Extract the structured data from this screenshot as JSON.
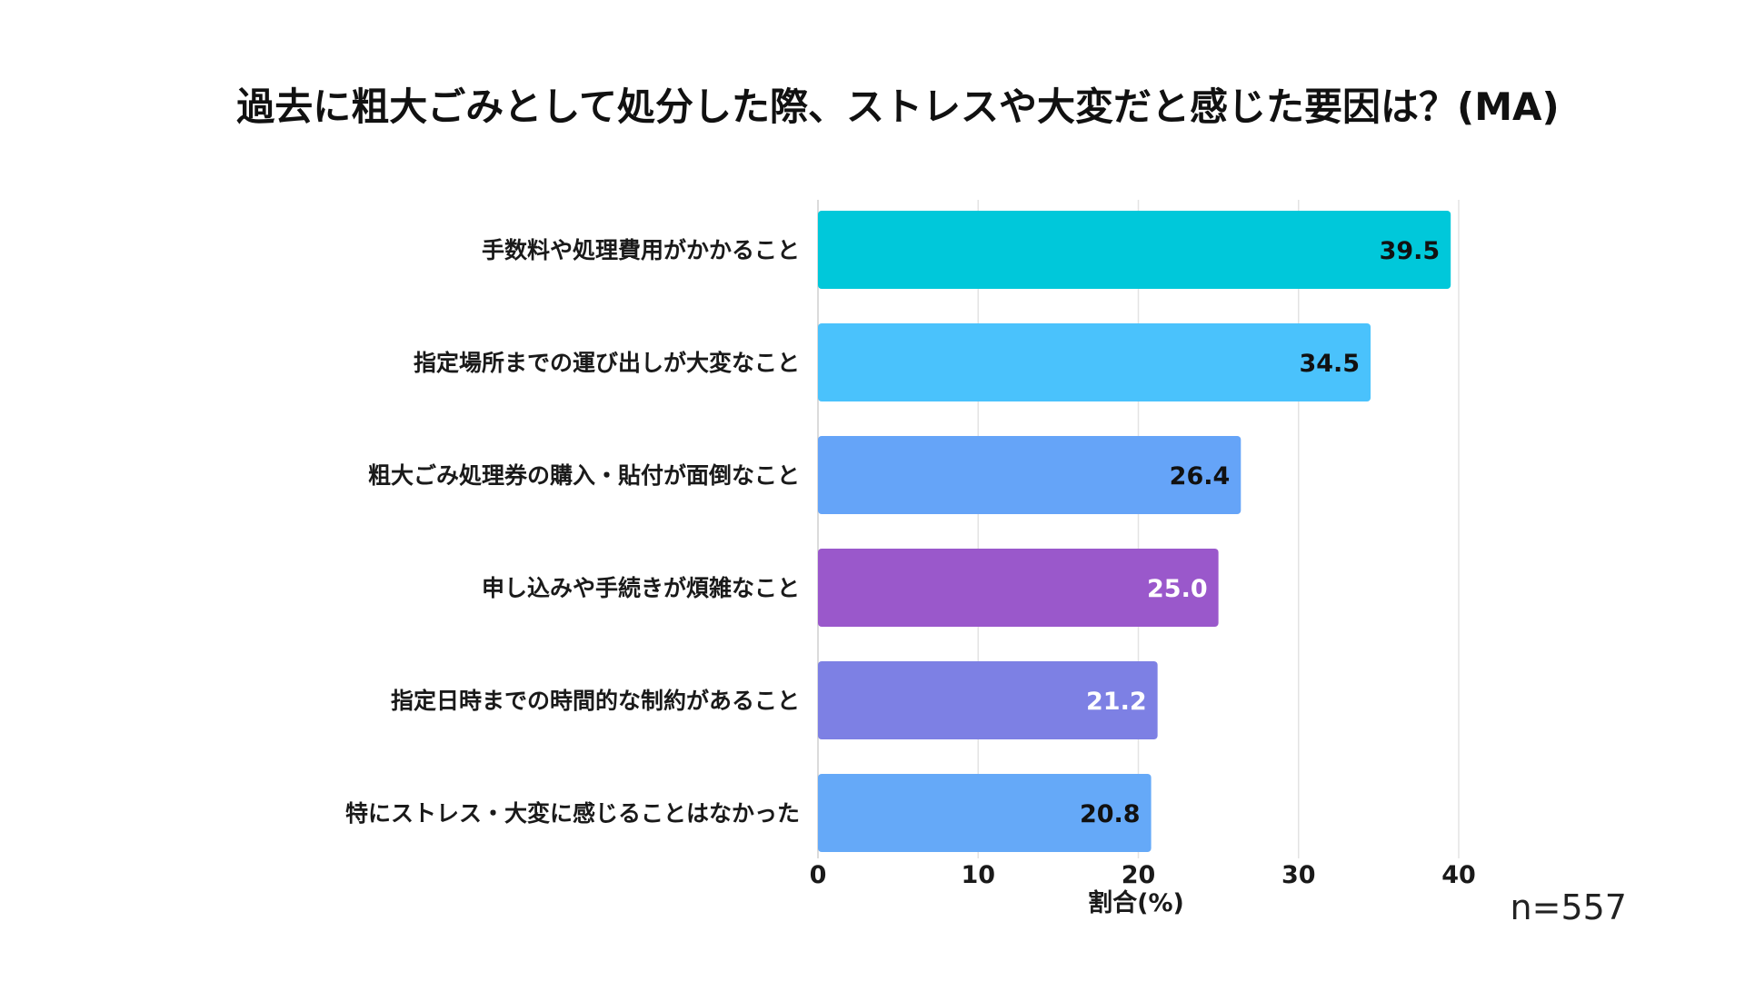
{
  "chart_data": {
    "type": "bar",
    "orientation": "horizontal",
    "title": "過去に粗大ごみとして処分した際、ストレスや大変だと感じた要因は？(MA)",
    "categories": [
      "手数料や処理費用がかかること",
      "指定場所までの運び出しが大変なこと",
      "粗大ごみ処理券の購入・貼付が面倒なこと",
      "申し込みや手続きが煩雑なこと",
      "指定日時までの時間的な制約があること",
      "特にストレス・大変に感じることはなかった"
    ],
    "values": [
      39.5,
      34.5,
      26.4,
      25.0,
      21.2,
      20.8
    ],
    "value_labels": [
      "39.5",
      "34.5",
      "26.4",
      "25.0",
      "21.2",
      "20.8"
    ],
    "bar_colors": [
      "#00c8da",
      "#4ac2fc",
      "#65a4f8",
      "#9a58cb",
      "#7d80e4",
      "#65a9f8"
    ],
    "value_label_colors": [
      "#111111",
      "#111111",
      "#111111",
      "#ffffff",
      "#ffffff",
      "#111111"
    ],
    "xlabel": "割合(%)",
    "ylabel": "",
    "xlim": [
      0,
      40
    ],
    "xticks": [
      0,
      10,
      20,
      30,
      40
    ],
    "xtick_labels": [
      "0",
      "10",
      "20",
      "30",
      "40"
    ],
    "grid": true,
    "note": "n=557"
  }
}
